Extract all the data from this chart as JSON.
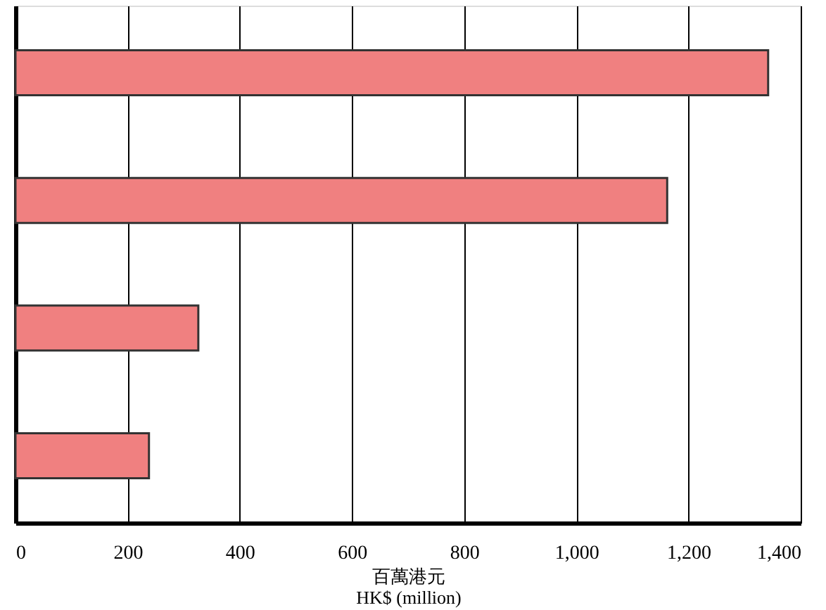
{
  "chart_data": {
    "type": "bar",
    "orientation": "horizontal",
    "categories": [
      null,
      null,
      null,
      null
    ],
    "values": [
      1342,
      1162,
      326,
      238
    ],
    "color": "#f08080",
    "xlim": [
      0,
      1400
    ],
    "xticks": [
      0,
      200,
      400,
      600,
      800,
      {
        "value": 1000,
        "label": "1,000"
      },
      {
        "value": 1200,
        "label": "1,200"
      },
      {
        "value": 1400,
        "label": "1,400"
      }
    ],
    "xlabel": "百萬港元\nHK$ (million)",
    "grid": "x"
  }
}
